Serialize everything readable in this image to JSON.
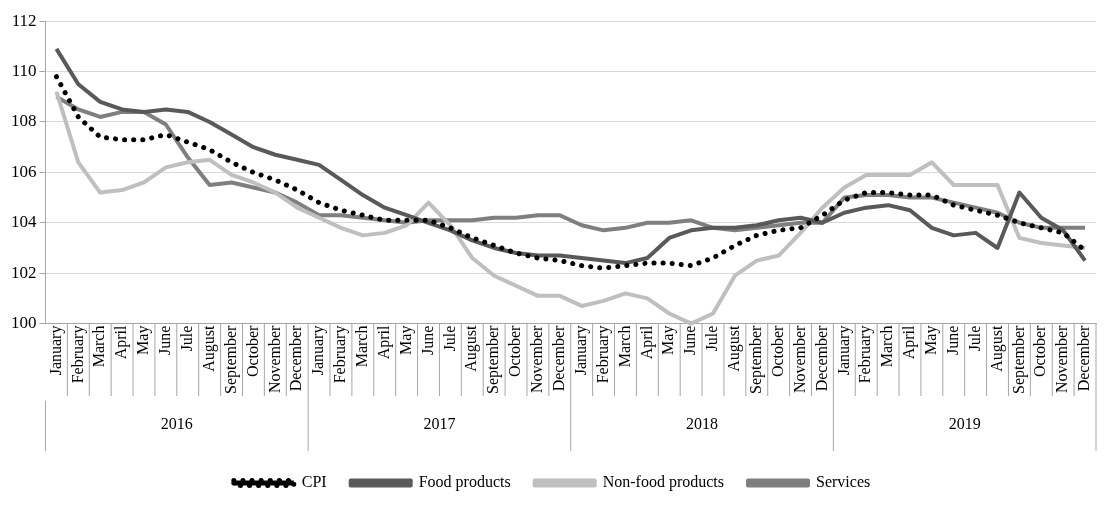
{
  "chart_data": {
    "type": "line",
    "categories": [
      "January",
      "February",
      "March",
      "April",
      "May",
      "June",
      "Jule",
      "August",
      "September",
      "October",
      "November",
      "December",
      "January",
      "February",
      "March",
      "April",
      "May",
      "June",
      "Jule",
      "August",
      "September",
      "October",
      "November",
      "December",
      "January",
      "February",
      "March",
      "April",
      "May",
      "June",
      "Jule",
      "August",
      "September",
      "October",
      "November",
      "December",
      "January",
      "February",
      "March",
      "April",
      "May",
      "June",
      "Jule",
      "August",
      "September",
      "October",
      "November",
      "December"
    ],
    "annotations": [
      "2016",
      "2017",
      "2018",
      "2019"
    ],
    "ylim": [
      100,
      112
    ],
    "yticks": [
      100,
      102,
      104,
      106,
      108,
      110,
      112
    ],
    "grid": "y",
    "legend": "bottom",
    "marker": "none",
    "series": [
      {
        "name": "CPI",
        "color": "#000000",
        "line_style": "dotted",
        "values": [
          109.8,
          108.2,
          107.4,
          107.3,
          107.3,
          107.5,
          107.2,
          106.9,
          106.4,
          106.0,
          105.7,
          105.3,
          104.8,
          104.5,
          104.3,
          104.1,
          104.1,
          104.1,
          103.8,
          103.4,
          103.1,
          102.8,
          102.6,
          102.5,
          102.3,
          102.2,
          102.3,
          102.4,
          102.4,
          102.3,
          102.6,
          103.1,
          103.5,
          103.7,
          103.8,
          104.3,
          104.9,
          105.2,
          105.2,
          105.1,
          105.1,
          104.7,
          104.5,
          104.3,
          104.0,
          103.8,
          103.6,
          102.9
        ]
      },
      {
        "name": "Food products",
        "color": "#595959",
        "line_style": "solid",
        "values": [
          110.9,
          109.5,
          108.8,
          108.5,
          108.4,
          108.5,
          108.4,
          108.0,
          107.5,
          107.0,
          106.7,
          106.5,
          106.3,
          105.7,
          105.1,
          104.6,
          104.3,
          104.0,
          103.7,
          103.3,
          103.0,
          102.8,
          102.7,
          102.7,
          102.6,
          102.5,
          102.4,
          102.6,
          103.4,
          103.7,
          103.8,
          103.8,
          103.9,
          104.1,
          104.2,
          104.0,
          104.4,
          104.6,
          104.7,
          104.5,
          103.8,
          103.5,
          103.6,
          103.0,
          105.2,
          104.2,
          103.7,
          102.5
        ]
      },
      {
        "name": "Non-food products",
        "color": "#bfbfbf",
        "line_style": "solid",
        "values": [
          109.2,
          106.4,
          105.2,
          105.3,
          105.6,
          106.2,
          106.4,
          106.5,
          105.9,
          105.6,
          105.2,
          104.6,
          104.2,
          103.8,
          103.5,
          103.6,
          103.9,
          104.8,
          103.9,
          102.6,
          101.9,
          101.5,
          101.1,
          101.1,
          100.7,
          100.9,
          101.2,
          101.0,
          100.4,
          100.0,
          100.4,
          101.9,
          102.5,
          102.7,
          103.6,
          104.6,
          105.4,
          105.9,
          105.9,
          105.9,
          106.4,
          105.5,
          105.5,
          105.5,
          103.4,
          103.2,
          103.1,
          103.0
        ]
      },
      {
        "name": "Services",
        "color": "#7f7f7f",
        "line_style": "solid",
        "values": [
          109.0,
          108.5,
          108.2,
          108.4,
          108.4,
          107.9,
          106.6,
          105.5,
          105.6,
          105.4,
          105.2,
          104.8,
          104.3,
          104.3,
          104.2,
          104.1,
          104.0,
          104.1,
          104.1,
          104.1,
          104.2,
          104.2,
          104.3,
          104.3,
          103.9,
          103.7,
          103.8,
          104.0,
          104.0,
          104.1,
          103.8,
          103.7,
          103.8,
          103.9,
          104.0,
          104.0,
          105.0,
          105.1,
          105.1,
          105.0,
          105.0,
          104.8,
          104.6,
          104.4,
          104.0,
          103.8,
          103.8,
          103.8
        ]
      }
    ]
  }
}
